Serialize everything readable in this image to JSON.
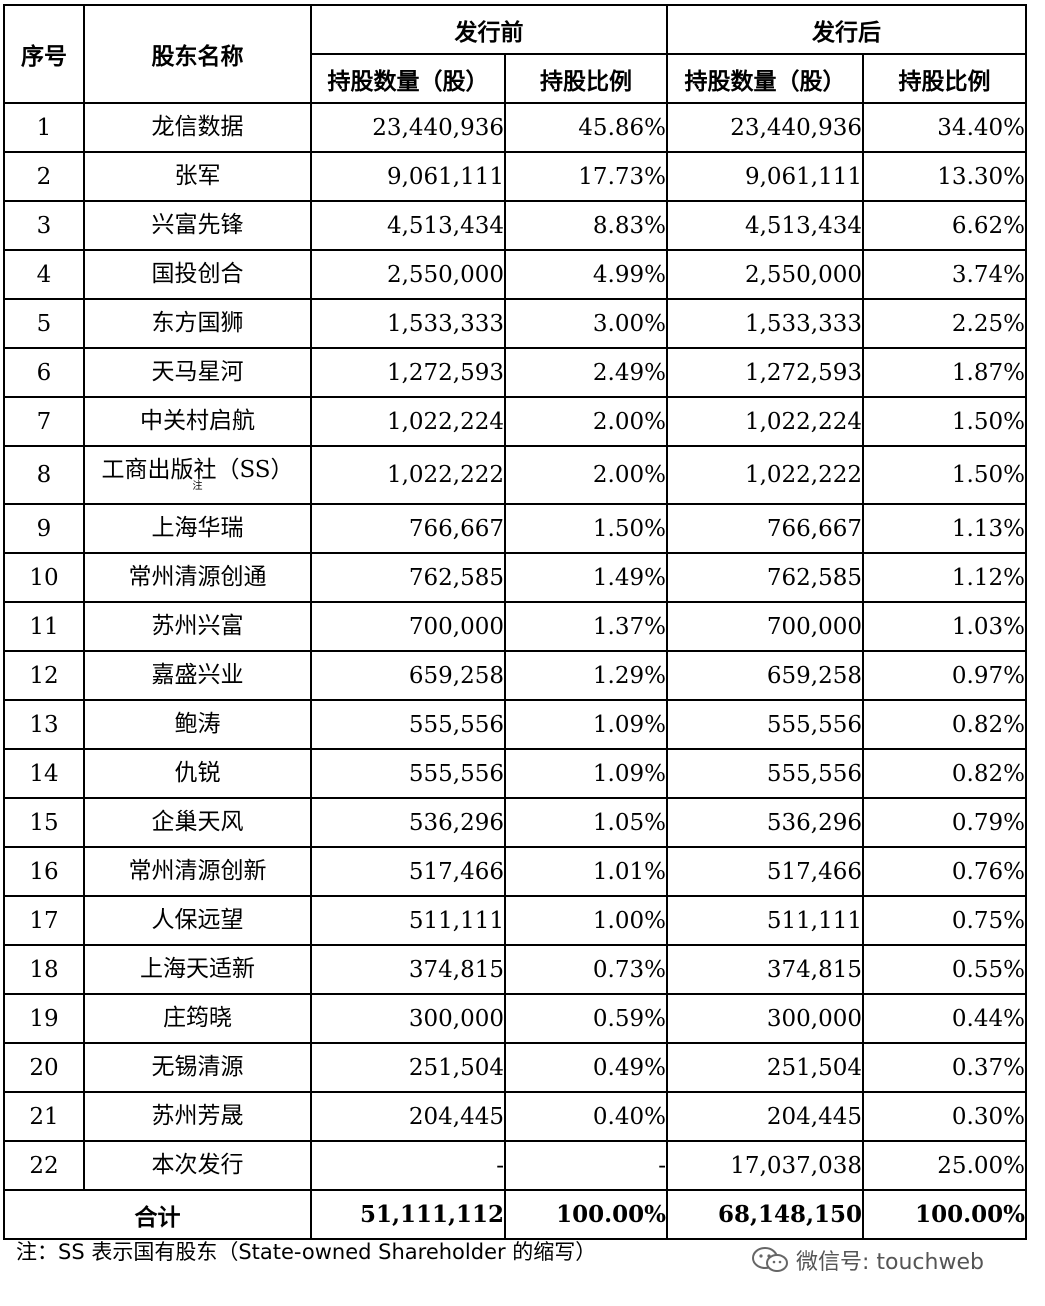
{
  "table": {
    "headers": {
      "seq": "序号",
      "name": "股东名称",
      "before": "发行前",
      "after": "发行后",
      "shares": "持股数量（股）",
      "ratio": "持股比例"
    },
    "rows": [
      {
        "seq": "1",
        "name": "龙信数据",
        "before_shares": "23,440,936",
        "before_ratio": "45.86%",
        "after_shares": "23,440,936",
        "after_ratio": "34.40%"
      },
      {
        "seq": "2",
        "name": "张军",
        "before_shares": "9,061,111",
        "before_ratio": "17.73%",
        "after_shares": "9,061,111",
        "after_ratio": "13.30%"
      },
      {
        "seq": "3",
        "name": "兴富先锋",
        "before_shares": "4,513,434",
        "before_ratio": "8.83%",
        "after_shares": "4,513,434",
        "after_ratio": "6.62%"
      },
      {
        "seq": "4",
        "name": "国投创合",
        "before_shares": "2,550,000",
        "before_ratio": "4.99%",
        "after_shares": "2,550,000",
        "after_ratio": "3.74%"
      },
      {
        "seq": "5",
        "name": "东方国狮",
        "before_shares": "1,533,333",
        "before_ratio": "3.00%",
        "after_shares": "1,533,333",
        "after_ratio": "2.25%"
      },
      {
        "seq": "6",
        "name": "天马星河",
        "before_shares": "1,272,593",
        "before_ratio": "2.49%",
        "after_shares": "1,272,593",
        "after_ratio": "1.87%"
      },
      {
        "seq": "7",
        "name": "中关村启航",
        "before_shares": "1,022,224",
        "before_ratio": "2.00%",
        "after_shares": "1,022,224",
        "after_ratio": "1.50%"
      },
      {
        "seq": "8",
        "name": "工商出版社（SS）",
        "name_note": "注",
        "before_shares": "1,022,222",
        "before_ratio": "2.00%",
        "after_shares": "1,022,222",
        "after_ratio": "1.50%"
      },
      {
        "seq": "9",
        "name": "上海华瑞",
        "before_shares": "766,667",
        "before_ratio": "1.50%",
        "after_shares": "766,667",
        "after_ratio": "1.13%"
      },
      {
        "seq": "10",
        "name": "常州清源创通",
        "before_shares": "762,585",
        "before_ratio": "1.49%",
        "after_shares": "762,585",
        "after_ratio": "1.12%"
      },
      {
        "seq": "11",
        "name": "苏州兴富",
        "before_shares": "700,000",
        "before_ratio": "1.37%",
        "after_shares": "700,000",
        "after_ratio": "1.03%"
      },
      {
        "seq": "12",
        "name": "嘉盛兴业",
        "before_shares": "659,258",
        "before_ratio": "1.29%",
        "after_shares": "659,258",
        "after_ratio": "0.97%"
      },
      {
        "seq": "13",
        "name": "鲍涛",
        "before_shares": "555,556",
        "before_ratio": "1.09%",
        "after_shares": "555,556",
        "after_ratio": "0.82%"
      },
      {
        "seq": "14",
        "name": "仇锐",
        "before_shares": "555,556",
        "before_ratio": "1.09%",
        "after_shares": "555,556",
        "after_ratio": "0.82%"
      },
      {
        "seq": "15",
        "name": "企巢天风",
        "before_shares": "536,296",
        "before_ratio": "1.05%",
        "after_shares": "536,296",
        "after_ratio": "0.79%"
      },
      {
        "seq": "16",
        "name": "常州清源创新",
        "before_shares": "517,466",
        "before_ratio": "1.01%",
        "after_shares": "517,466",
        "after_ratio": "0.76%"
      },
      {
        "seq": "17",
        "name": "人保远望",
        "before_shares": "511,111",
        "before_ratio": "1.00%",
        "after_shares": "511,111",
        "after_ratio": "0.75%"
      },
      {
        "seq": "18",
        "name": "上海天适新",
        "before_shares": "374,815",
        "before_ratio": "0.73%",
        "after_shares": "374,815",
        "after_ratio": "0.55%"
      },
      {
        "seq": "19",
        "name": "庄筠晓",
        "before_shares": "300,000",
        "before_ratio": "0.59%",
        "after_shares": "300,000",
        "after_ratio": "0.44%"
      },
      {
        "seq": "20",
        "name": "无锡清源",
        "before_shares": "251,504",
        "before_ratio": "0.49%",
        "after_shares": "251,504",
        "after_ratio": "0.37%"
      },
      {
        "seq": "21",
        "name": "苏州芳晟",
        "before_shares": "204,445",
        "before_ratio": "0.40%",
        "after_shares": "204,445",
        "after_ratio": "0.30%"
      },
      {
        "seq": "22",
        "name": "本次发行",
        "before_shares": "-",
        "before_ratio": "-",
        "after_shares": "17,037,038",
        "after_ratio": "25.00%"
      }
    ],
    "total": {
      "label": "合计",
      "before_shares": "51,111,112",
      "before_ratio": "100.00%",
      "after_shares": "68,148,150",
      "after_ratio": "100.00%"
    }
  },
  "footnote": "注：SS 表示国有股东（State-owned Shareholder 的缩写）",
  "watermark": {
    "text": "微信号: touchweb",
    "icon": "wechat-icon"
  }
}
